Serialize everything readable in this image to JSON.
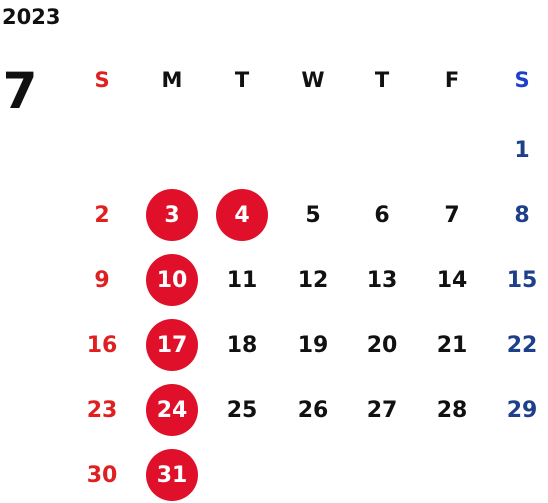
{
  "calendar": {
    "year": "2023",
    "month": "7",
    "weekdays": [
      "S",
      "M",
      "T",
      "W",
      "T",
      "F",
      "S"
    ],
    "weeks": [
      [
        "",
        "",
        "",
        "",
        "",
        "",
        "1"
      ],
      [
        "2",
        "3",
        "4",
        "5",
        "6",
        "7",
        "8"
      ],
      [
        "9",
        "10",
        "11",
        "12",
        "13",
        "14",
        "15"
      ],
      [
        "16",
        "17",
        "18",
        "19",
        "20",
        "21",
        "22"
      ],
      [
        "23",
        "24",
        "25",
        "26",
        "27",
        "28",
        "29"
      ],
      [
        "30",
        "31",
        "",
        "",
        "",
        "",
        ""
      ]
    ],
    "highlighted_days": [
      "3",
      "4",
      "10",
      "17",
      "24",
      "31"
    ],
    "colors": {
      "text": "#111111",
      "sunday": "#e02020",
      "saturday": "#1e3f8a",
      "saturday_header": "#1c3fd0",
      "highlight": "#e0102a",
      "highlight_text": "#ffffff"
    }
  }
}
